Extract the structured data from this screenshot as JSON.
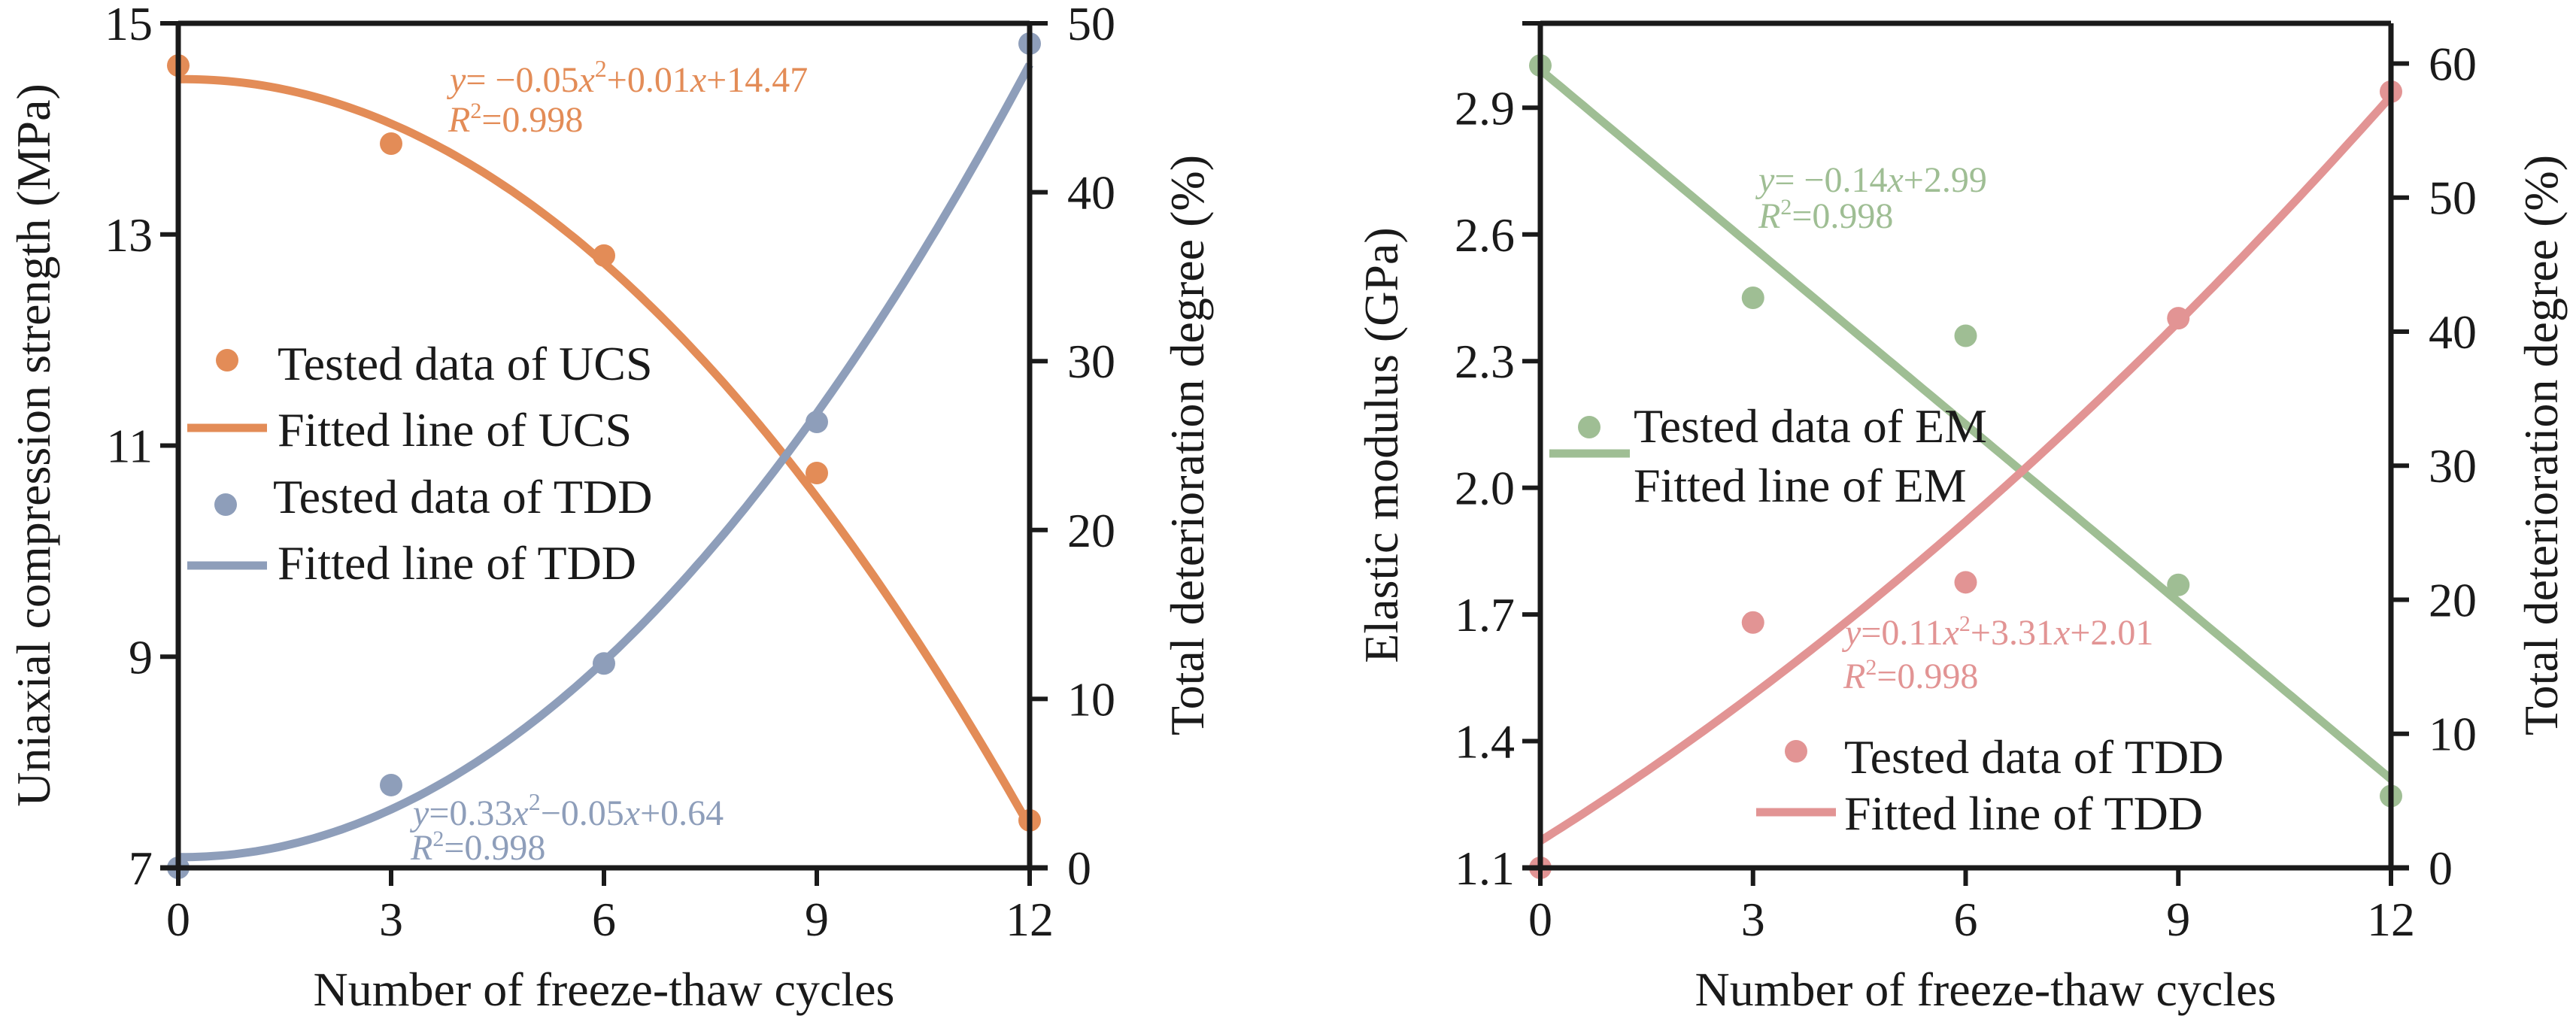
{
  "chart_data": [
    {
      "type": "scatter",
      "title": "",
      "xlabel": "Number of freeze-thaw cycles",
      "ylabel": "Uniaxial compression strength (MPa)",
      "y2label": "Total deterioration degree (%)",
      "xlim": [
        0,
        12
      ],
      "ylim": [
        7,
        15
      ],
      "y2lim": [
        0,
        50
      ],
      "xticks": [
        "0",
        "3",
        "6",
        "9",
        "12"
      ],
      "yticks": [
        "7",
        "9",
        "11",
        "13",
        "15"
      ],
      "y2ticks": [
        "0",
        "10",
        "20",
        "30",
        "40",
        "50"
      ],
      "grid": false,
      "legend_position": "center-left",
      "x": [
        0,
        3,
        6,
        9,
        12
      ],
      "series": [
        {
          "name": "Tested data of UCS",
          "kind": "points",
          "axis": "left",
          "color": "#E38C57",
          "values": [
            14.6,
            13.86,
            12.8,
            10.74,
            7.45
          ]
        },
        {
          "name": "Fitted line of UCS",
          "kind": "fit",
          "axis": "left",
          "color": "#E38C57",
          "coefficients": [
            -0.05,
            0.01,
            14.47
          ],
          "equation": {
            "y": "y",
            "eq": "= −0.05",
            "x1": "x",
            "sup": "2",
            "rest": "+0.01",
            "x2": "x",
            "tail": "+14.47"
          },
          "r2_label": {
            "r": "R",
            "sup": "2",
            "rest": "=0.998"
          }
        },
        {
          "name": "Tested data of TDD",
          "kind": "points",
          "axis": "right",
          "color": "#8E9EBA",
          "values": [
            0,
            4.9,
            12.1,
            26.4,
            48.8
          ]
        },
        {
          "name": "Fitted line of TDD",
          "kind": "fit",
          "axis": "right",
          "color": "#8E9EBA",
          "coefficients": [
            0.33,
            -0.05,
            0.64
          ],
          "equation": {
            "y": "y",
            "eq": "=0.33",
            "x1": "x",
            "sup": "2",
            "rest": "−0.05",
            "x2": "x",
            "tail": "+0.64"
          },
          "r2_label": {
            "r": "R",
            "sup": "2",
            "rest": "=0.998"
          }
        }
      ]
    },
    {
      "type": "scatter",
      "title": "",
      "xlabel": "Number of freeze-thaw cycles",
      "ylabel": "Elastic modulus (GPa)",
      "y2label": "Total deterioration degree (%)",
      "xlim": [
        0,
        12
      ],
      "ylim": [
        1.1,
        3.1
      ],
      "y2lim": [
        0,
        63
      ],
      "xticks": [
        "0",
        "3",
        "6",
        "9",
        "12"
      ],
      "yticks": [
        "1.1",
        "1.4",
        "1.7",
        "2.0",
        "2.3",
        "2.6",
        "2.9"
      ],
      "y2ticks": [
        "0",
        "10",
        "20",
        "30",
        "40",
        "50",
        "60"
      ],
      "grid": false,
      "legend_position": "center-left / bottom-center",
      "x": [
        0,
        3,
        6,
        9,
        12
      ],
      "series": [
        {
          "name": "Tested data of EM",
          "kind": "points",
          "axis": "left",
          "color": "#9FBE94",
          "values": [
            3.0,
            2.45,
            2.36,
            1.77,
            1.27
          ]
        },
        {
          "name": "Fitted line of EM",
          "kind": "fit",
          "axis": "left",
          "color": "#9FBE94",
          "coefficients": [
            0,
            -0.14,
            2.99
          ],
          "equation": {
            "y": "y",
            "eq": "= −0.14",
            "x1": "x",
            "sup": "",
            "rest": "",
            "x2": "",
            "tail": "+2.99"
          },
          "r2_label": {
            "r": "R",
            "sup": "2",
            "rest": "=0.998"
          }
        },
        {
          "name": "Tested data of TDD",
          "kind": "points",
          "axis": "right",
          "color": "#E29494",
          "values": [
            0,
            18.3,
            21.3,
            41.0,
            57.9
          ]
        },
        {
          "name": "Fitted line of TDD",
          "kind": "fit",
          "axis": "right",
          "color": "#E29494",
          "coefficients": [
            0.11,
            3.31,
            2.01
          ],
          "equation": {
            "y": "y",
            "eq": "=0.11",
            "x1": "x",
            "sup": "2",
            "rest": "+3.31",
            "x2": "x",
            "tail": "+2.01"
          },
          "r2_label": {
            "r": "R",
            "sup": "2",
            "rest": "=0.998"
          }
        }
      ]
    }
  ]
}
